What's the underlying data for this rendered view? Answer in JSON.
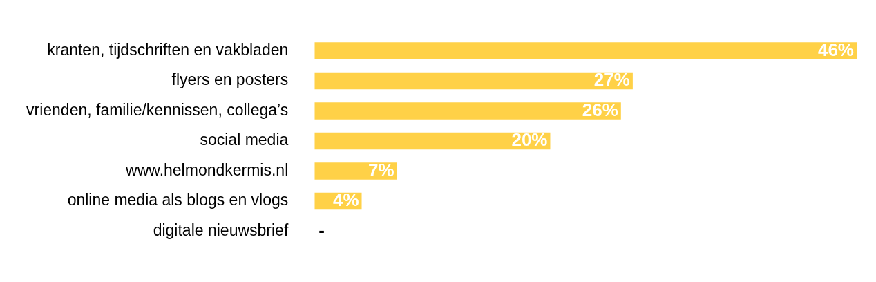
{
  "chart_data": {
    "type": "bar",
    "orientation": "horizontal",
    "categories": [
      "kranten, tijdschriften en vakbladen",
      "flyers en posters",
      "vrienden, familie/kennissen, collega’s",
      "social media",
      "www.helmondkermis.nl",
      "online media als blogs en vlogs",
      "digitale nieuwsbrief"
    ],
    "values": [
      46,
      27,
      26,
      20,
      7,
      4,
      null
    ],
    "value_labels": [
      "46%",
      "27%",
      "26%",
      "20%",
      "7%",
      "4%",
      "-"
    ],
    "color": "#ffd147",
    "grid": false,
    "legend": false
  }
}
